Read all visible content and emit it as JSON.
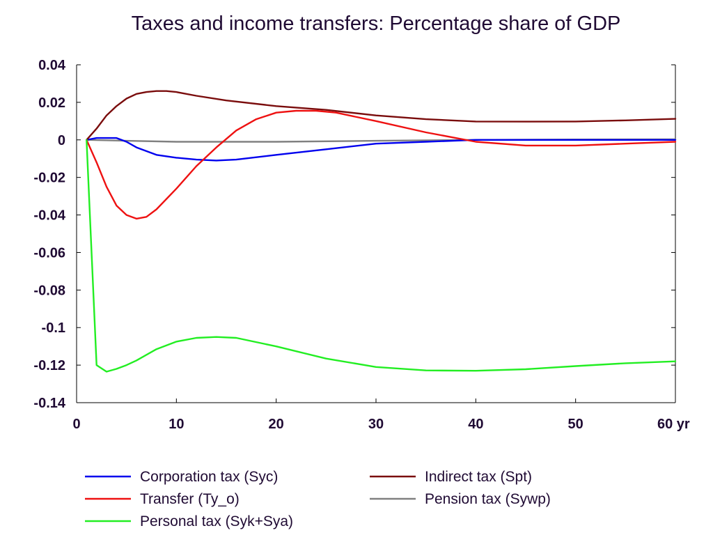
{
  "chart_data": {
    "type": "line",
    "title": "Taxes and income transfers: Percentage share of GDP",
    "xlabel": "",
    "ylabel": "",
    "x_unit_suffix": "yr",
    "xlim": [
      0,
      60
    ],
    "ylim": [
      -0.14,
      0.04
    ],
    "x_ticks": [
      0,
      10,
      20,
      30,
      40,
      50,
      60
    ],
    "x_tick_labels": [
      "0",
      "10",
      "20",
      "30",
      "40",
      "50",
      "60 yr"
    ],
    "y_ticks": [
      0.04,
      0.02,
      0,
      -0.02,
      -0.04,
      -0.06,
      -0.08,
      -0.1,
      -0.12,
      -0.14
    ],
    "y_tick_labels": [
      "0.04",
      "0.02",
      "0",
      "-0.02",
      "-0.04",
      "-0.06",
      "-0.08",
      "-0.1",
      "-0.12",
      "-0.14"
    ],
    "grid": false,
    "legend_position": "bottom",
    "series": [
      {
        "name": "Corporation tax (Syc)",
        "color": "#0000ee",
        "x": [
          1,
          2,
          3,
          4,
          5,
          6,
          8,
          10,
          12,
          14,
          16,
          20,
          25,
          30,
          35,
          40,
          45,
          50,
          55,
          60
        ],
        "values": [
          0,
          0.001,
          0.001,
          0.001,
          -0.001,
          -0.004,
          -0.008,
          -0.0095,
          -0.0105,
          -0.011,
          -0.0105,
          -0.008,
          -0.005,
          -0.002,
          -0.001,
          0,
          0,
          0,
          0,
          0
        ]
      },
      {
        "name": "Transfer (Ty_o)",
        "color": "#ee1111",
        "x": [
          1,
          2,
          3,
          4,
          5,
          6,
          7,
          8,
          10,
          12,
          14,
          16,
          18,
          20,
          22,
          24,
          26,
          30,
          35,
          40,
          45,
          50,
          55,
          60
        ],
        "values": [
          0,
          -0.012,
          -0.025,
          -0.035,
          -0.04,
          -0.042,
          -0.041,
          -0.037,
          -0.026,
          -0.014,
          -0.004,
          0.005,
          0.011,
          0.0145,
          0.0155,
          0.0155,
          0.0145,
          0.01,
          0.004,
          -0.001,
          -0.003,
          -0.003,
          -0.002,
          -0.001
        ]
      },
      {
        "name": "Personal tax (Syk+Sya)",
        "color": "#22ee22",
        "x": [
          1,
          2,
          3,
          4,
          5,
          6,
          8,
          10,
          12,
          14,
          16,
          20,
          25,
          30,
          35,
          40,
          45,
          50,
          55,
          60
        ],
        "values": [
          0,
          -0.12,
          -0.1235,
          -0.122,
          -0.12,
          -0.1175,
          -0.1115,
          -0.1075,
          -0.1055,
          -0.105,
          -0.1055,
          -0.11,
          -0.1165,
          -0.121,
          -0.1228,
          -0.123,
          -0.1222,
          -0.1205,
          -0.119,
          -0.118
        ]
      },
      {
        "name": "Indirect tax (Spt)",
        "color": "#7a0c0c",
        "x": [
          1,
          2,
          3,
          4,
          5,
          6,
          7,
          8,
          9,
          10,
          12,
          15,
          20,
          25,
          30,
          35,
          40,
          45,
          50,
          55,
          60
        ],
        "values": [
          0,
          0.006,
          0.013,
          0.018,
          0.022,
          0.0245,
          0.0255,
          0.026,
          0.026,
          0.0255,
          0.0235,
          0.021,
          0.018,
          0.016,
          0.013,
          0.011,
          0.0098,
          0.0097,
          0.0098,
          0.0104,
          0.0112
        ]
      },
      {
        "name": "Pension tax (Sywp)",
        "color": "#808080",
        "x": [
          1,
          5,
          10,
          20,
          30,
          40,
          50,
          60
        ],
        "values": [
          0,
          -0.0005,
          -0.001,
          -0.001,
          -0.0005,
          0,
          0.0002,
          0.0003
        ]
      }
    ],
    "legend_rows": [
      [
        "Corporation tax (Syc)",
        "Indirect tax (Spt)"
      ],
      [
        "Transfer (Ty_o)",
        "Pension tax (Sywp)"
      ],
      [
        "Personal tax (Syk+Sya)"
      ]
    ]
  }
}
